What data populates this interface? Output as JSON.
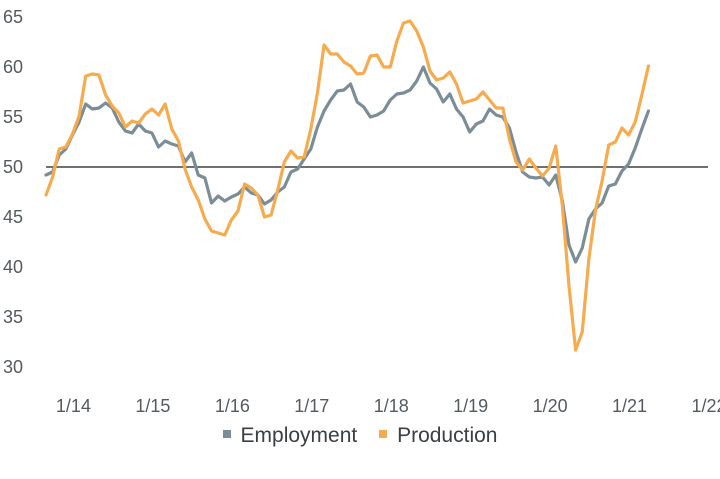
{
  "chart_data": {
    "type": "line",
    "title": "",
    "xlabel": "",
    "ylabel": "",
    "ylim": [
      30,
      65
    ],
    "yticks": [
      30,
      35,
      40,
      45,
      50,
      55,
      60,
      65
    ],
    "xlim": [
      2014.0,
      2022.0
    ],
    "xtick_values": [
      2014,
      2015,
      2016,
      2017,
      2018,
      2019,
      2020,
      2021,
      2022
    ],
    "xtick_labels": [
      "1/14",
      "1/15",
      "1/16",
      "1/17",
      "1/18",
      "1/19",
      "1/20",
      "1/21",
      "1/22"
    ],
    "reference_line": 50,
    "series": [
      {
        "name": "Employment",
        "color": "#7b8d97",
        "x_start": 2013.667,
        "step_months": 1,
        "values": [
          49.2,
          49.5,
          51.2,
          51.8,
          53.2,
          54.5,
          56.3,
          55.8,
          55.9,
          56.4,
          55.9,
          54.5,
          53.6,
          53.4,
          54.3,
          53.6,
          53.4,
          52.0,
          52.6,
          52.3,
          52.1,
          50.5,
          51.4,
          49.2,
          48.9,
          46.4,
          47.1,
          46.6,
          47.0,
          47.3,
          48.0,
          47.4,
          47.2,
          46.3,
          46.7,
          47.5,
          48.0,
          49.5,
          49.8,
          50.8,
          51.8,
          54.0,
          55.6,
          56.7,
          57.6,
          57.7,
          58.3,
          56.5,
          56.0,
          55.0,
          55.2,
          55.6,
          56.7,
          57.3,
          57.4,
          57.7,
          58.6,
          60.0,
          58.4,
          57.8,
          56.5,
          57.3,
          55.8,
          55.0,
          53.5,
          54.3,
          54.6,
          55.8,
          55.2,
          55.0,
          53.9,
          51.5,
          49.5,
          49.0,
          48.9,
          49.0,
          48.2,
          49.2,
          46.6,
          42.2,
          40.5,
          41.9,
          44.8,
          45.8,
          46.4,
          48.1,
          48.3,
          49.6,
          50.3,
          51.9,
          53.8,
          55.6
        ]
      },
      {
        "name": "Production",
        "color": "#f5ab4e",
        "x_start": 2013.667,
        "step_months": 1,
        "values": [
          47.2,
          49.0,
          51.8,
          52.0,
          53.3,
          55.1,
          59.1,
          59.3,
          59.2,
          57.2,
          56.1,
          55.4,
          54.0,
          54.6,
          54.4,
          55.3,
          55.8,
          55.2,
          56.3,
          53.8,
          52.6,
          49.8,
          48.0,
          46.7,
          44.8,
          43.6,
          43.4,
          43.2,
          44.7,
          45.6,
          48.3,
          47.9,
          47.2,
          45.0,
          45.2,
          47.7,
          50.5,
          51.6,
          50.9,
          51.0,
          53.8,
          57.4,
          62.2,
          61.3,
          61.3,
          60.5,
          60.1,
          59.3,
          59.4,
          61.1,
          61.2,
          60.0,
          60.0,
          62.6,
          64.4,
          64.6,
          63.6,
          62.0,
          59.6,
          58.7,
          58.9,
          59.5,
          58.3,
          56.4,
          56.6,
          56.8,
          57.5,
          56.7,
          55.9,
          55.9,
          52.8,
          50.5,
          49.7,
          50.8,
          49.9,
          49.1,
          49.9,
          52.1,
          46.1,
          38.1,
          31.7,
          33.5,
          40.8,
          45.7,
          48.6,
          52.2,
          52.5,
          53.9,
          53.2,
          54.5,
          57.2,
          60.1
        ]
      }
    ],
    "legend": [
      "Employment",
      "Production"
    ],
    "legend_position": "bottom-center"
  }
}
